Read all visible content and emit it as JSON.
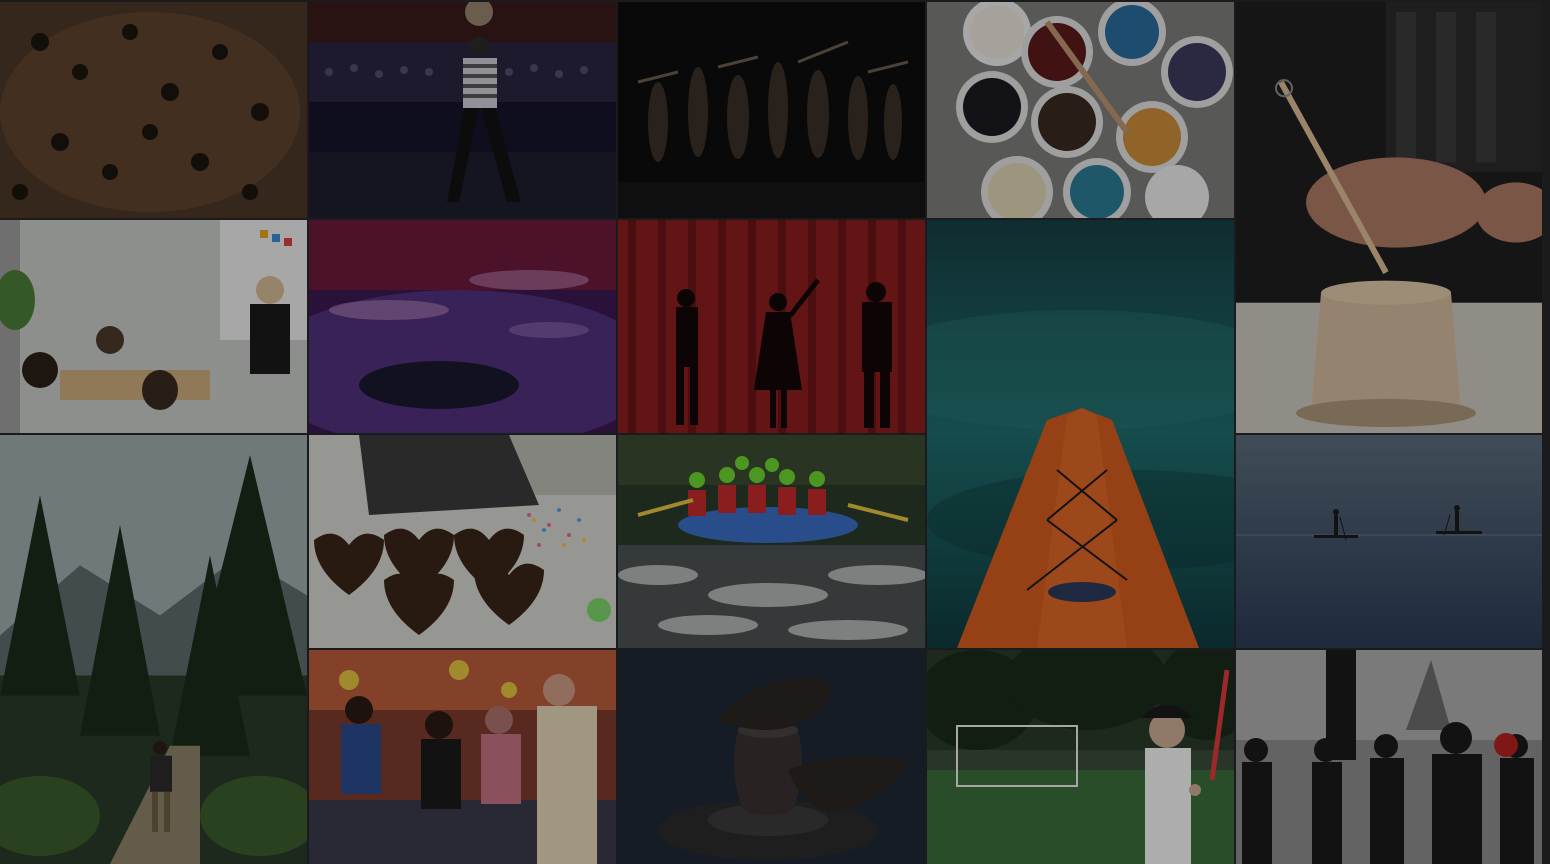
{
  "gallery": {
    "tiles": [
      {
        "subject": "crowd-dancing",
        "color": "#5a4330"
      },
      {
        "subject": "stage-performer",
        "color": "#1e1e3a"
      },
      {
        "subject": "dance-troupe",
        "color": "#121212"
      },
      {
        "subject": "paint-buckets",
        "color": "#8a8a8a"
      },
      {
        "subject": "pottery-carving",
        "color": "#2a2a2a"
      },
      {
        "subject": "classroom",
        "color": "#b8b8b0"
      },
      {
        "subject": "floor-dance",
        "color": "#5a2a7a"
      },
      {
        "subject": "theatre-silhouettes",
        "color": "#8a1e1e"
      },
      {
        "subject": "kayak-bow",
        "color": "#1f5a5a"
      },
      {
        "subject": "forest-hike",
        "color": "#3a4a3a"
      },
      {
        "subject": "cookie-decorating",
        "color": "#cfcfcf"
      },
      {
        "subject": "white-water-rafting",
        "color": "#4a4f44"
      },
      {
        "subject": "paddle-boarding",
        "color": "#3a4a60"
      },
      {
        "subject": "festival-crafts",
        "color": "#9a5040"
      },
      {
        "subject": "potter-wheel",
        "color": "#1f2a38"
      },
      {
        "subject": "tennis-player",
        "color": "#2e4a2e"
      },
      {
        "subject": "street-march",
        "color": "#6a6a6a"
      }
    ]
  }
}
